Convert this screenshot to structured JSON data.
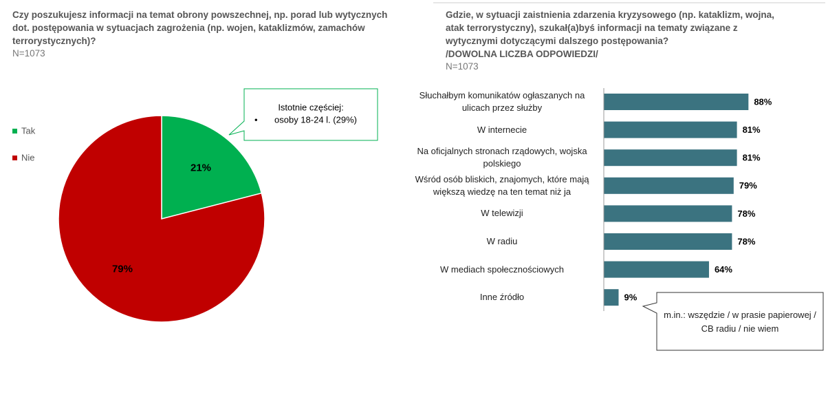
{
  "chart_data": [
    {
      "type": "pie",
      "title": "Czy poszukujesz informacji na temat obrony powszechnej, np. porad lub wytycznych dot. postępowania w sytuacjach zagrożenia (np. wojen, kataklizmów, zamachów terrorystycznych)?",
      "subtitle": "N=1073",
      "categories": [
        "Tak",
        "Nie"
      ],
      "values": [
        21,
        79
      ],
      "value_labels": [
        "21%",
        "79%"
      ],
      "colors": [
        "#00b050",
        "#c00000"
      ],
      "legend": "left",
      "annotation": {
        "heading": "Istotnie częściej:",
        "items": [
          "osoby 18-24 l. (29%)"
        ]
      }
    },
    {
      "type": "bar",
      "orientation": "horizontal",
      "title": "Gdzie, w sytuacji zaistnienia zdarzenia kryzysowego (np. kataklizm, wojna, atak terrorystyczny), szukał(a)byś informacji na tematy związane z wytycznymi dotyczącymi dalszego postępowania?",
      "title_note": "/DOWOLNA LICZBA ODPOWIEDZI/",
      "subtitle": "N=1073",
      "categories": [
        "Słuchałbym komunikatów ogłaszanych na ulicach przez służby",
        "W internecie",
        "Na oficjalnych stronach rządowych, wojska polskiego",
        "Wśród osób bliskich, znajomych, które mają większą wiedzę na ten temat niż ja",
        "W telewizji",
        "W radiu",
        "W mediach społecznościowych",
        "Inne źródło"
      ],
      "values": [
        88,
        81,
        81,
        79,
        78,
        78,
        64,
        9
      ],
      "value_labels": [
        "88%",
        "81%",
        "81%",
        "79%",
        "78%",
        "78%",
        "64%",
        "9%"
      ],
      "color": "#3b7380",
      "xlim": [
        0,
        100
      ],
      "annotation": "m.in.: wszędzie / w prasie papierowej / CB radiu / nie wiem"
    }
  ]
}
